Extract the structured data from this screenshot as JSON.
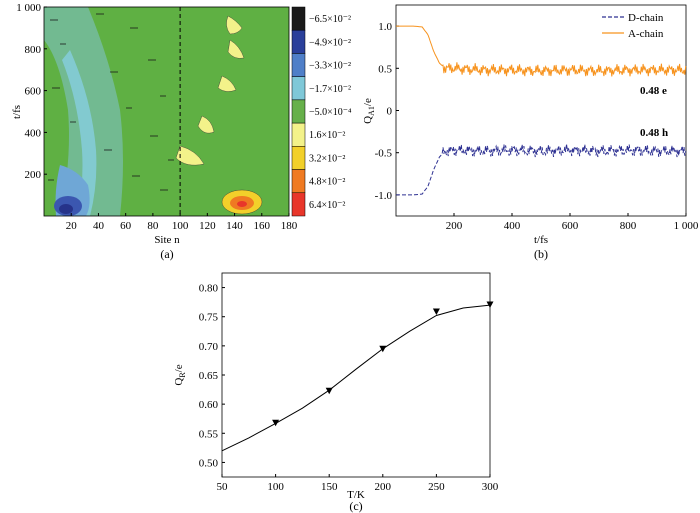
{
  "chart_data": [
    {
      "panel": "(a)",
      "type": "heatmap",
      "xlabel": "Site n",
      "ylabel": "t/fs",
      "xlim": [
        0,
        180
      ],
      "ylim": [
        0,
        1000
      ],
      "xticks": [
        "20",
        "40",
        "60",
        "80",
        "100",
        "120",
        "140",
        "160",
        "180"
      ],
      "yticks": [
        "200",
        "400",
        "600",
        "800",
        "1 000"
      ],
      "divider_x": 100,
      "colorbar": {
        "labels": [
          "−6.5×10⁻²",
          "−4.9×10⁻²",
          "−3.3×10⁻²",
          "−1.7×10⁻²",
          "−5.0×10⁻⁴",
          "1.6×10⁻²",
          "3.2×10⁻²",
          "4.8×10⁻²",
          "6.4×10⁻²"
        ],
        "colors": [
          "#1a1a1a",
          "#2a3f9a",
          "#4f7fc8",
          "#7fc8d8",
          "#66b04a",
          "#f3f28a",
          "#f2d02a",
          "#ef7a22",
          "#e8362a"
        ]
      },
      "background_color": "#5fb043",
      "band_color": "#74bb9a"
    },
    {
      "panel": "(b)",
      "type": "line",
      "xlabel": "t/fs",
      "ylabel": "Q_{A1}/e",
      "xlim": [
        0,
        1000
      ],
      "ylim": [
        -1.25,
        1.25
      ],
      "xticks": [
        "200",
        "400",
        "600",
        "800",
        "1 000"
      ],
      "yticks": [
        "1.0",
        "0.5",
        "0",
        "-0.5",
        "-1.0"
      ],
      "series": [
        {
          "name": "D-chain",
          "style": "dashed",
          "color": "#2e3192",
          "x": [
            0,
            60,
            90,
            110,
            130,
            150,
            170,
            200,
            300,
            400,
            500,
            600,
            700,
            800,
            900,
            1000
          ],
          "y": [
            -1.0,
            -1.0,
            -0.99,
            -0.9,
            -0.7,
            -0.55,
            -0.48,
            -0.47,
            -0.48,
            -0.47,
            -0.48,
            -0.47,
            -0.48,
            -0.47,
            -0.48,
            -0.48
          ]
        },
        {
          "name": "A-chain",
          "style": "solid",
          "color": "#f7931e",
          "x": [
            0,
            60,
            90,
            110,
            130,
            150,
            170,
            200,
            300,
            400,
            500,
            600,
            700,
            800,
            900,
            1000
          ],
          "y": [
            1.0,
            1.0,
            0.99,
            0.9,
            0.7,
            0.56,
            0.5,
            0.5,
            0.48,
            0.48,
            0.47,
            0.48,
            0.47,
            0.48,
            0.48,
            0.48
          ]
        }
      ],
      "annotations": [
        {
          "text": "0.48 e",
          "color": "#f7931e"
        },
        {
          "text": "0.48 h",
          "color": "#2e3192"
        }
      ]
    },
    {
      "panel": "(c)",
      "type": "line",
      "xlabel": "T/K",
      "ylabel": "Q_R/e",
      "xlim": [
        50,
        300
      ],
      "ylim": [
        0.475,
        0.825
      ],
      "xticks": [
        "50",
        "100",
        "150",
        "200",
        "250",
        "300"
      ],
      "yticks": [
        "0.80",
        "0.75",
        "0.70",
        "0.65",
        "0.60",
        "0.55",
        "0.50"
      ],
      "points": {
        "x": [
          100,
          150,
          200,
          250,
          300
        ],
        "y": [
          0.568,
          0.623,
          0.695,
          0.759,
          0.771
        ]
      },
      "curve": {
        "x": [
          50,
          75,
          100,
          125,
          150,
          175,
          200,
          225,
          250,
          275,
          300
        ],
        "y": [
          0.52,
          0.542,
          0.567,
          0.593,
          0.624,
          0.66,
          0.695,
          0.725,
          0.752,
          0.765,
          0.77
        ]
      }
    }
  ]
}
